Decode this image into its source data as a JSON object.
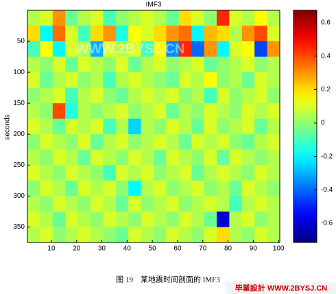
{
  "chart_data": {
    "type": "heatmap",
    "title": "IMF3",
    "ylabel": "seconds",
    "xlim": [
      0.5,
      100.5
    ],
    "xticks": [
      10,
      20,
      30,
      40,
      50,
      60,
      70,
      80,
      90,
      100
    ],
    "ylim": [
      0,
      375
    ],
    "yticks": [
      50,
      100,
      150,
      200,
      250,
      300,
      350
    ],
    "y_reversed": true,
    "clim": [
      -0.715,
      0.674
    ],
    "cticks": [
      0.6,
      0.4,
      0.2,
      0,
      -0.2,
      -0.4,
      -0.6
    ],
    "colormap": "jet",
    "values": [
      [
        0.05,
        0.1,
        0.3,
        -0.05,
        0.05,
        0.1,
        -0.1,
        0.0,
        0.05,
        0.1,
        0.05,
        -0.05,
        0.2,
        0.1,
        0.0,
        0.45,
        0.1,
        0.05,
        0.15,
        0.05
      ],
      [
        0.2,
        -0.2,
        0.35,
        0.1,
        -0.1,
        0.2,
        0.3,
        -0.15,
        0.15,
        0.1,
        0.2,
        0.3,
        0.35,
        -0.2,
        0.25,
        0.2,
        0.05,
        0.3,
        0.4,
        0.1
      ],
      [
        -0.1,
        0.15,
        -0.2,
        0.1,
        0.05,
        -0.3,
        0.1,
        0.05,
        0.1,
        -0.1,
        0.15,
        -0.35,
        0.45,
        -0.4,
        0.3,
        -0.2,
        0.1,
        0.15,
        -0.45,
        0.3
      ],
      [
        0.05,
        0.0,
        0.1,
        -0.05,
        0.1,
        0.05,
        0.0,
        0.1,
        -0.05,
        0.05,
        0.1,
        0.0,
        0.05,
        0.1,
        -0.05,
        0.0,
        0.05,
        0.1,
        0.0,
        0.05
      ],
      [
        0.1,
        -0.05,
        0.05,
        0.1,
        0.0,
        0.05,
        -0.1,
        0.05,
        0.1,
        0.05,
        0.0,
        -0.05,
        0.1,
        0.05,
        0.15,
        0.0,
        0.05,
        -0.05,
        0.1,
        0.05
      ],
      [
        0.0,
        0.05,
        0.1,
        -0.1,
        0.05,
        0.1,
        0.0,
        -0.05,
        0.05,
        0.1,
        0.05,
        0.1,
        0.0,
        0.05,
        -0.1,
        0.1,
        0.0,
        0.05,
        0.1,
        0.0
      ],
      [
        0.05,
        0.0,
        0.4,
        -0.15,
        0.05,
        0.0,
        0.05,
        0.1,
        0.0,
        0.05,
        0.1,
        -0.05,
        0.05,
        0.0,
        0.1,
        0.05,
        0.0,
        0.1,
        0.05,
        0.1
      ],
      [
        0.1,
        0.05,
        -0.05,
        0.1,
        0.05,
        0.1,
        -0.1,
        0.05,
        -0.25,
        0.05,
        0.0,
        0.1,
        0.05,
        -0.05,
        0.1,
        0.0,
        0.05,
        0.1,
        -0.05,
        0.05
      ],
      [
        0.0,
        0.1,
        0.05,
        0.0,
        0.1,
        -0.05,
        0.05,
        0.1,
        0.0,
        0.05,
        0.1,
        0.05,
        -0.05,
        0.1,
        0.05,
        0.1,
        0.0,
        -0.05,
        0.05,
        0.1
      ],
      [
        0.05,
        0.0,
        0.1,
        0.05,
        -0.05,
        0.1,
        0.05,
        0.0,
        0.1,
        0.05,
        -0.05,
        0.1,
        0.05,
        0.0,
        0.1,
        -0.05,
        0.1,
        0.05,
        0.0,
        0.05
      ],
      [
        0.1,
        0.05,
        0.0,
        0.1,
        0.05,
        0.0,
        -0.1,
        0.1,
        0.05,
        0.1,
        0.0,
        0.05,
        0.1,
        -0.05,
        0.05,
        0.1,
        0.05,
        0.0,
        0.1,
        0.05
      ],
      [
        0.0,
        0.1,
        0.05,
        -0.05,
        0.1,
        0.05,
        0.1,
        0.0,
        -0.2,
        0.05,
        0.1,
        0.0,
        0.05,
        0.1,
        0.0,
        0.05,
        -0.05,
        0.1,
        0.05,
        0.0
      ],
      [
        0.05,
        0.0,
        0.1,
        0.05,
        0.0,
        0.1,
        0.05,
        -0.05,
        0.1,
        0.0,
        0.05,
        0.1,
        0.0,
        0.05,
        0.1,
        0.05,
        -0.1,
        0.05,
        0.1,
        0.05
      ],
      [
        0.1,
        0.05,
        -0.05,
        0.1,
        0.05,
        0.0,
        0.1,
        0.05,
        0.0,
        0.1,
        0.05,
        0.0,
        0.1,
        0.05,
        -0.05,
        -0.6,
        0.05,
        0.1,
        0.0,
        0.05
      ],
      [
        0.05,
        0.1,
        0.0,
        0.05,
        0.1,
        0.05,
        0.0,
        -0.05,
        0.1,
        0.05,
        0.0,
        0.1,
        0.05,
        0.0,
        0.1,
        0.2,
        0.05,
        0.0,
        0.1,
        0.05
      ]
    ],
    "watermark": "WWW.2BYSJ.CN",
    "caption": "图 19　某地震时间剖面的 IMF3",
    "logo": "毕業設計 WWW.2BYSJ.CN"
  }
}
